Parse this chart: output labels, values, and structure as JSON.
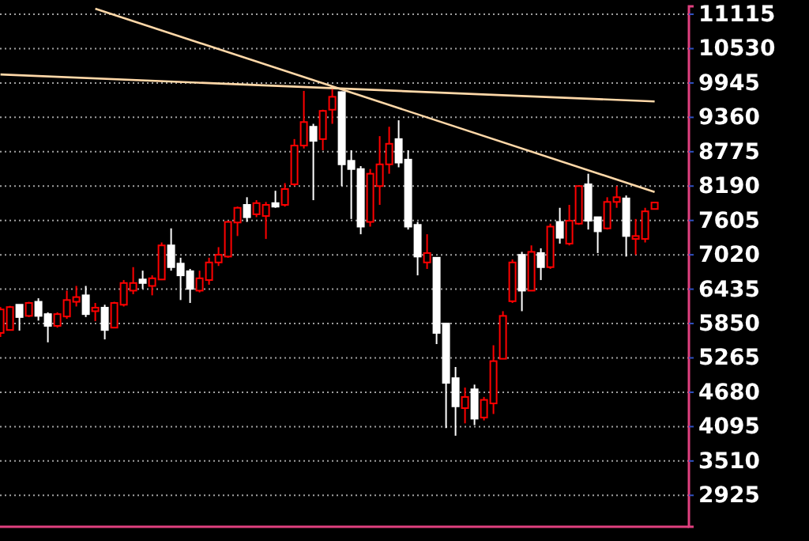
{
  "chart_data": {
    "type": "candlestick",
    "categories": [
      null,
      null,
      null,
      null,
      null,
      null,
      null,
      null,
      null,
      null,
      null,
      null,
      null,
      null,
      null,
      null,
      null,
      null,
      null,
      null,
      null,
      null,
      null,
      null,
      null,
      null,
      null,
      null,
      null,
      null,
      null,
      null,
      null,
      null,
      null,
      null,
      null,
      null,
      null,
      null,
      null,
      null,
      null,
      null,
      null,
      null,
      null,
      null,
      null,
      null,
      null,
      null,
      null,
      null,
      null,
      null,
      null,
      null,
      null,
      null,
      null,
      null,
      null,
      null,
      null,
      null,
      null,
      null,
      null,
      null
    ],
    "ohlc": [
      [
        5690,
        6130,
        5620,
        6090
      ],
      [
        5740,
        6150,
        5730,
        6130
      ],
      [
        6170,
        6170,
        5730,
        5960
      ],
      [
        5980,
        6220,
        5960,
        6200
      ],
      [
        6220,
        6280,
        5900,
        5980
      ],
      [
        6010,
        6040,
        5530,
        5810
      ],
      [
        5810,
        6040,
        5780,
        6010
      ],
      [
        5970,
        6410,
        5930,
        6250
      ],
      [
        6220,
        6490,
        6140,
        6300
      ],
      [
        6330,
        6490,
        5960,
        6010
      ],
      [
        6060,
        6200,
        5890,
        6120
      ],
      [
        6120,
        6170,
        5580,
        5740
      ],
      [
        5780,
        6220,
        5770,
        6200
      ],
      [
        6170,
        6590,
        6140,
        6540
      ],
      [
        6410,
        6810,
        6350,
        6540
      ],
      [
        6600,
        6750,
        6440,
        6540
      ],
      [
        6490,
        6670,
        6330,
        6620
      ],
      [
        6600,
        7230,
        6590,
        7180
      ],
      [
        7180,
        7470,
        6750,
        6810
      ],
      [
        6870,
        6970,
        6250,
        6670
      ],
      [
        6740,
        6780,
        6200,
        6440
      ],
      [
        6410,
        6750,
        6380,
        6620
      ],
      [
        6590,
        6970,
        6510,
        6890
      ],
      [
        6890,
        7150,
        6830,
        7020
      ],
      [
        6990,
        7600,
        6970,
        7580
      ],
      [
        7570,
        7840,
        7340,
        7820
      ],
      [
        7870,
        8000,
        7580,
        7660
      ],
      [
        7710,
        7950,
        7660,
        7900
      ],
      [
        7680,
        7920,
        7290,
        7870
      ],
      [
        7900,
        8110,
        7820,
        7840
      ],
      [
        7870,
        8240,
        7840,
        8140
      ],
      [
        8220,
        8990,
        8190,
        8880
      ],
      [
        8880,
        9810,
        8830,
        9280
      ],
      [
        9200,
        9250,
        7950,
        8960
      ],
      [
        8990,
        9490,
        8800,
        9470
      ],
      [
        9490,
        9840,
        9250,
        9710
      ],
      [
        9790,
        9800,
        8190,
        8560
      ],
      [
        8620,
        8800,
        7630,
        8480
      ],
      [
        8480,
        8530,
        7370,
        7500
      ],
      [
        7580,
        8480,
        7500,
        8400
      ],
      [
        8190,
        9040,
        7870,
        8560
      ],
      [
        8560,
        9200,
        8400,
        8910
      ],
      [
        8990,
        9310,
        8510,
        8590
      ],
      [
        8640,
        8800,
        7450,
        7500
      ],
      [
        7530,
        7580,
        6670,
        6990
      ],
      [
        6890,
        7370,
        6780,
        7050
      ],
      [
        6970,
        6970,
        5500,
        5690
      ],
      [
        5850,
        5850,
        4070,
        4840
      ],
      [
        4920,
        5110,
        3940,
        4440
      ],
      [
        4410,
        4760,
        4150,
        4600
      ],
      [
        4730,
        4810,
        4120,
        4230
      ],
      [
        4250,
        4600,
        4200,
        4550
      ],
      [
        4490,
        5480,
        4310,
        5210
      ],
      [
        5250,
        6060,
        5250,
        5980
      ],
      [
        6230,
        6940,
        6200,
        6890
      ],
      [
        7020,
        7070,
        6060,
        6410
      ],
      [
        6410,
        7180,
        6410,
        7070
      ],
      [
        7050,
        7130,
        6590,
        6810
      ],
      [
        6810,
        7550,
        6780,
        7500
      ],
      [
        7580,
        7820,
        7210,
        7310
      ],
      [
        7210,
        7870,
        7180,
        7600
      ],
      [
        7550,
        8190,
        7530,
        8190
      ],
      [
        8220,
        8400,
        7450,
        7600
      ],
      [
        7660,
        7660,
        7050,
        7420
      ],
      [
        7470,
        8000,
        7450,
        7920
      ],
      [
        7920,
        8190,
        7820,
        8000
      ],
      [
        7980,
        8030,
        6990,
        7340
      ],
      [
        7290,
        7630,
        7020,
        7340
      ],
      [
        7290,
        7820,
        7230,
        7760
      ],
      [
        7800,
        7920,
        7800,
        7910
      ]
    ],
    "colors": [
      "#ff0000",
      "#ff0000",
      "#ffffff",
      "#ff0000",
      "#ffffff",
      "#ffffff",
      "#ff0000",
      "#ff0000",
      "#ff0000",
      "#ffffff",
      "#ff0000",
      "#ffffff",
      "#ff0000",
      "#ff0000",
      "#ff0000",
      "#ffffff",
      "#ff0000",
      "#ff0000",
      "#ffffff",
      "#ffffff",
      "#ffffff",
      "#ff0000",
      "#ff0000",
      "#ff0000",
      "#ff0000",
      "#ff0000",
      "#ffffff",
      "#ff0000",
      "#ff0000",
      "#ffffff",
      "#ff0000",
      "#ff0000",
      "#ff0000",
      "#ffffff",
      "#ff0000",
      "#ff0000",
      "#ffffff",
      "#ffffff",
      "#ffffff",
      "#ff0000",
      "#ff0000",
      "#ff0000",
      "#ffffff",
      "#ffffff",
      "#ffffff",
      "#ff0000",
      "#ffffff",
      "#ffffff",
      "#ffffff",
      "#ff0000",
      "#ffffff",
      "#ff0000",
      "#ff0000",
      "#ff0000",
      "#ff0000",
      "#ffffff",
      "#ff0000",
      "#ffffff",
      "#ff0000",
      "#ffffff",
      "#ff0000",
      "#ff0000",
      "#ffffff",
      "#ffffff",
      "#ff0000",
      "#ff0000",
      "#ffffff",
      "#ff0000",
      "#ff0000",
      "#ff0000"
    ],
    "ylim": [
      2390,
      11250
    ],
    "yticks": [
      2925,
      3510,
      4095,
      4680,
      5265,
      5850,
      6435,
      7020,
      7605,
      8190,
      8775,
      9360,
      9945,
      10530,
      11115
    ],
    "grid": "y",
    "tick_labels": "y",
    "series": [
      {
        "type": "line",
        "color": "#ffd8a8",
        "values": [
          null,
          null,
          null,
          null,
          null,
          null,
          null,
          null,
          null,
          null,
          11210,
          null,
          null,
          null,
          null,
          null,
          null,
          null,
          null,
          null,
          null,
          null,
          null,
          null,
          null,
          null,
          null,
          null,
          null,
          null,
          null,
          null,
          null,
          null,
          null,
          null,
          null,
          null,
          null,
          null,
          null,
          null,
          null,
          null,
          null,
          null,
          null,
          null,
          null,
          null,
          null,
          null,
          null,
          null,
          null,
          null,
          null,
          null,
          null,
          null,
          null,
          null,
          null,
          null,
          null,
          null,
          null,
          null,
          null,
          8090
        ]
      },
      {
        "type": "line",
        "color": "#ffd8a8",
        "values": [
          10090,
          null,
          null,
          null,
          null,
          null,
          null,
          null,
          null,
          null,
          null,
          null,
          null,
          null,
          null,
          null,
          null,
          null,
          null,
          null,
          null,
          null,
          null,
          null,
          null,
          null,
          null,
          null,
          null,
          null,
          null,
          null,
          null,
          null,
          null,
          null,
          null,
          null,
          null,
          null,
          null,
          null,
          null,
          null,
          null,
          null,
          null,
          null,
          null,
          null,
          null,
          null,
          null,
          null,
          null,
          null,
          null,
          null,
          null,
          null,
          null,
          null,
          null,
          null,
          null,
          null,
          null,
          null,
          null,
          9630
        ]
      }
    ]
  }
}
